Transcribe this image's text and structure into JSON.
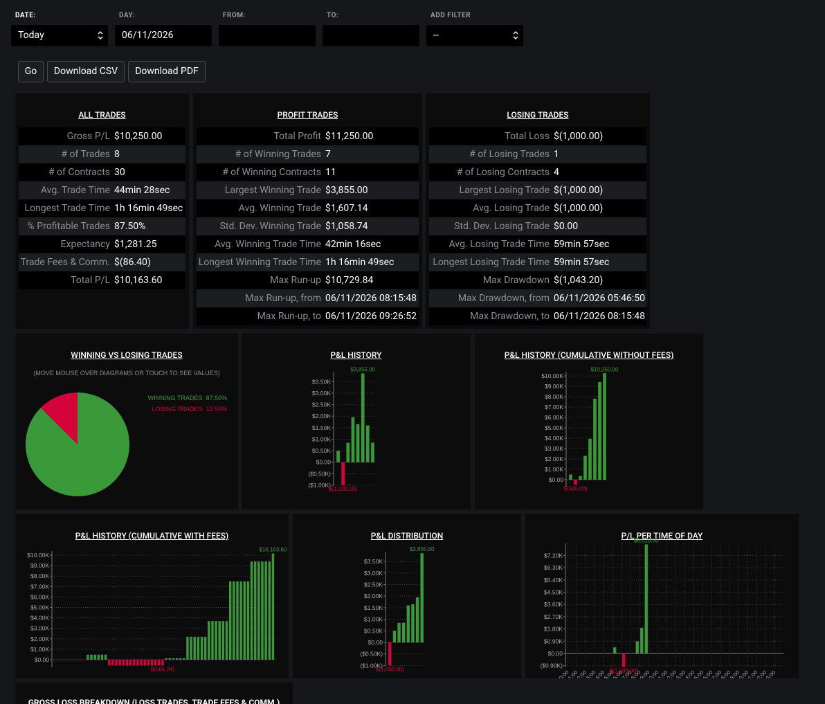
{
  "filters": [
    {
      "label": "DATE:",
      "value": "Today"
    },
    {
      "label": "DAY:",
      "value": "06/11/2026"
    },
    {
      "label": "FROM:"
    },
    {
      "label": "TO:"
    },
    {
      "label": "ADD FILTER",
      "value": "--"
    }
  ],
  "buttons": [
    "Go",
    "Download CSV",
    "Download PDF"
  ],
  "stats": [
    {
      "title": "ALL TRADES",
      "rows": [
        [
          "Gross P/L",
          "$10,250.00"
        ],
        [
          "# of Trades",
          "8"
        ],
        [
          "# of Contracts",
          "30"
        ],
        [
          "Avg. Trade Time",
          "44min 28sec"
        ],
        [
          "Longest Trade Time",
          "1h 16min 49sec"
        ],
        [
          "% Profitable Trades",
          "87.50%"
        ],
        [
          "Expectancy",
          "$1,281.25"
        ],
        [
          "Trade Fees & Comm.",
          "$(86.40)"
        ],
        [
          "Total P/L",
          "$10,163.60"
        ]
      ]
    },
    {
      "title": "PROFIT TRADES",
      "rows": [
        [
          "Total Profit",
          "$11,250.00"
        ],
        [
          "# of Winning Trades",
          "7"
        ],
        [
          "# of Winning Contracts",
          "11"
        ],
        [
          "Largest Winning Trade",
          "$3,855.00"
        ],
        [
          "Avg. Winning Trade",
          "$1,607.14"
        ],
        [
          "Std. Dev. Winning Trade",
          "$1,058.74"
        ],
        [
          "Avg. Winning Trade Time",
          "42min 16sec"
        ],
        [
          "Longest Winning Trade Time",
          "1h 16min 49sec"
        ],
        [
          "Max Run-up",
          "$10,729.84"
        ],
        [
          "Max Run-up, from",
          "06/11/2026 08:15:48"
        ],
        [
          "Max Run-up, to",
          "06/11/2026 09:26:52"
        ]
      ]
    },
    {
      "title": "LOSING TRADES",
      "rows": [
        [
          "Total Loss",
          "$(1,000.00)"
        ],
        [
          "# of Losing Trades",
          "1"
        ],
        [
          "# of Losing Contracts",
          "4"
        ],
        [
          "Largest Losing Trade",
          "$(1,000.00)"
        ],
        [
          "Avg. Losing Trade",
          "$(1,000.00)"
        ],
        [
          "Std. Dev. Losing Trade",
          "$0.00"
        ],
        [
          "Avg. Losing Trade Time",
          "59min 57sec"
        ],
        [
          "Longest Losing Trade Time",
          "59min 57sec"
        ],
        [
          "Max Drawdown",
          "$(1,043.20)"
        ],
        [
          "Max Drawdown, from",
          "06/11/2026 05:46:50"
        ],
        [
          "Max Drawdown, to",
          "06/11/2026 08:15:48"
        ]
      ]
    }
  ],
  "chart_data": [
    {
      "type": "pie",
      "title": "WINNING VS LOSING TRADES",
      "subtitle": "(MOVE MOUSE OVER DIAGRAMS OR TOUCH TO SEE VALUES)",
      "labels": [
        "WINNING TRADES: 87.50%",
        "LOSING TRADES: 12.50%"
      ],
      "values": [
        87.5,
        12.5
      ],
      "colors": [
        "#3a9a3a",
        "#d4043a"
      ]
    },
    {
      "type": "bar",
      "title": "P&L HISTORY",
      "values": [
        500,
        -1000,
        845,
        1950,
        1650,
        3855,
        1600,
        850
      ],
      "value_labels": [
        null,
        "$(1,000.00)",
        null,
        null,
        null,
        "$3,855.00",
        null,
        null
      ],
      "pos_color": "#3a9a3a",
      "neg_color": "#d4043a",
      "grid": true,
      "ylim": [
        -1000,
        3900
      ],
      "yticks": [
        {
          "value": -1000,
          "label": "($1.00K)"
        },
        {
          "value": -500,
          "label": "($0.50K)"
        },
        {
          "value": 0,
          "label": "$0.00"
        },
        {
          "value": 500,
          "label": "$0.50K"
        },
        {
          "value": 1000,
          "label": "$1.00K"
        },
        {
          "value": 1500,
          "label": "$1.50K"
        },
        {
          "value": 2000,
          "label": "$2.00K"
        },
        {
          "value": 2500,
          "label": "$2.50K"
        },
        {
          "value": 3000,
          "label": "$3.00K"
        },
        {
          "value": 3500,
          "label": "$3.50K"
        }
      ]
    },
    {
      "type": "bar",
      "title": "P&L HISTORY (CUMULATIVE WITHOUT FEES)",
      "values": [
        500,
        -500,
        345,
        2295,
        3945,
        7800,
        9400,
        10250
      ],
      "value_labels": [
        null,
        "$(500.00)",
        null,
        null,
        null,
        null,
        null,
        "$10,250.00"
      ],
      "pos_color": "#3a9a3a",
      "neg_color": "#d4043a",
      "grid": true,
      "ylim": [
        -700,
        10400
      ],
      "yticks": [
        {
          "value": 0,
          "label": "$0.00"
        },
        {
          "value": 1000,
          "label": "$1.00K"
        },
        {
          "value": 2000,
          "label": "$2.00K"
        },
        {
          "value": 3000,
          "label": "$3.00K"
        },
        {
          "value": 4000,
          "label": "$4.00K"
        },
        {
          "value": 5000,
          "label": "$5.00K"
        },
        {
          "value": 6000,
          "label": "$6.00K"
        },
        {
          "value": 7000,
          "label": "$7.00K"
        },
        {
          "value": 8000,
          "label": "$8.00K"
        },
        {
          "value": 9000,
          "label": "$9.00K"
        },
        {
          "value": 10000,
          "label": "$10.00K"
        }
      ]
    },
    {
      "type": "bar",
      "title": "P&L HISTORY (CUMULATIVE WITH FEES)",
      "values": [
        -15,
        -15,
        -15,
        -15,
        -15,
        -15,
        -15,
        -15,
        -15,
        488,
        488,
        488,
        488,
        488,
        488,
        -566.24,
        -566.24,
        -566.24,
        -566.24,
        -566.24,
        -566.24,
        -566.24,
        -566.24,
        -566.24,
        -566.24,
        -566.24,
        -566.24,
        -566.24,
        -566.24,
        -566.24,
        -566.24,
        140,
        140,
        140,
        140,
        140,
        140,
        2200,
        2200,
        2200,
        2200,
        2200,
        2200,
        3700,
        3700,
        3700,
        3700,
        3700,
        3700,
        7500,
        7500,
        7500,
        7500,
        7500,
        7500,
        9400,
        9400,
        9400,
        9400,
        9400,
        9400,
        10163.6
      ],
      "value_labels": [
        null,
        null,
        null,
        null,
        null,
        null,
        null,
        null,
        null,
        null,
        null,
        null,
        null,
        null,
        null,
        null,
        null,
        null,
        null,
        null,
        null,
        null,
        null,
        null,
        null,
        null,
        null,
        null,
        null,
        null,
        "$(566.24)",
        null,
        null,
        null,
        null,
        null,
        null,
        null,
        null,
        null,
        null,
        null,
        null,
        null,
        null,
        null,
        null,
        null,
        null,
        null,
        null,
        null,
        null,
        null,
        null,
        null,
        null,
        null,
        null,
        null,
        null,
        "$10,163.60"
      ],
      "pos_color": "#3a9a3a",
      "neg_color": "#d4043a",
      "grid": true,
      "ylim": [
        -700,
        10400
      ],
      "yticks": [
        {
          "value": 0,
          "label": "$0.00"
        },
        {
          "value": 1000,
          "label": "$1.00K"
        },
        {
          "value": 2000,
          "label": "$2.00K"
        },
        {
          "value": 3000,
          "label": "$3.00K"
        },
        {
          "value": 4000,
          "label": "$4.00K"
        },
        {
          "value": 5000,
          "label": "$5.00K"
        },
        {
          "value": 6000,
          "label": "$6.00K"
        },
        {
          "value": 7000,
          "label": "$7.00K"
        },
        {
          "value": 8000,
          "label": "$8.00K"
        },
        {
          "value": 9000,
          "label": "$9.00K"
        },
        {
          "value": 10000,
          "label": "$10.00K"
        }
      ]
    },
    {
      "type": "bar",
      "title": "P&L DISTRIBUTION",
      "values": [
        -1000,
        500,
        845,
        850,
        1600,
        1650,
        1950,
        3855
      ],
      "value_labels": [
        "$(1,000.00)",
        null,
        null,
        null,
        null,
        null,
        null,
        "$3,855.00"
      ],
      "pos_color": "#3a9a3a",
      "neg_color": "#d4043a",
      "grid": true,
      "ylim": [
        -1000,
        3900
      ],
      "yticks": [
        {
          "value": -1000,
          "label": "($1.00K)"
        },
        {
          "value": -500,
          "label": "($0.50K)"
        },
        {
          "value": 0,
          "label": "$0.00"
        },
        {
          "value": 500,
          "label": "$0.50K"
        },
        {
          "value": 1000,
          "label": "$1.00K"
        },
        {
          "value": 1500,
          "label": "$1.50K"
        },
        {
          "value": 2000,
          "label": "$2.00K"
        },
        {
          "value": 2500,
          "label": "$2.50K"
        },
        {
          "value": 3000,
          "label": "$3.00K"
        },
        {
          "value": 3500,
          "label": "$3.50K"
        }
      ]
    },
    {
      "type": "bar",
      "title": "P/L PER TIME OF DAY",
      "categories": [
        "0:00",
        null,
        "1:00",
        null,
        "2:00",
        null,
        "3:00",
        null,
        "4:00",
        null,
        "5:00",
        null,
        "6:00",
        null,
        "7:00",
        null,
        "8:00",
        null,
        "9:00",
        null,
        "10:00",
        null,
        "11:00",
        null,
        "12:00",
        null,
        "13:00",
        null,
        "14:00",
        null,
        "15:00",
        null,
        "16:00",
        null,
        "17:00",
        null,
        "18:00",
        null,
        "19:00",
        null,
        "20:00",
        null,
        "21:00",
        null,
        "22:00",
        null,
        "23:00",
        null
      ],
      "values": [
        0,
        0,
        0,
        0,
        0,
        0,
        0,
        0,
        0,
        0,
        450,
        0,
        -1000,
        0,
        0,
        900,
        1890,
        8010,
        0,
        0,
        0,
        0,
        0,
        0,
        0,
        0,
        0,
        0,
        0,
        0,
        0,
        0,
        0,
        0,
        0,
        0,
        0,
        0,
        0,
        0,
        0,
        0,
        0,
        0,
        0,
        0,
        0,
        0
      ],
      "value_labels": [
        null,
        null,
        null,
        null,
        null,
        null,
        null,
        null,
        null,
        null,
        null,
        null,
        "$(1,000.00)",
        null,
        null,
        null,
        null,
        "$8,010.00",
        null,
        null,
        null,
        null,
        null,
        null,
        null,
        null,
        null,
        null,
        null,
        null,
        null,
        null,
        null,
        null,
        null,
        null,
        null,
        null,
        null,
        null,
        null,
        null,
        null,
        null,
        null,
        null,
        null,
        null
      ],
      "pos_color": "#3a9a3a",
      "neg_color": "#d4043a",
      "grid": true,
      "ylim": [
        -1000,
        8100
      ],
      "yticks": [
        {
          "value": -900,
          "label": "($0.90K)"
        },
        {
          "value": 0,
          "label": "$0.00"
        },
        {
          "value": 900,
          "label": "$0.90K"
        },
        {
          "value": 1800,
          "label": "$1.80K"
        },
        {
          "value": 2700,
          "label": "$2.70K"
        },
        {
          "value": 3600,
          "label": "$3.60K"
        },
        {
          "value": 4500,
          "label": "$4.50K"
        },
        {
          "value": 5400,
          "label": "$5.40K"
        },
        {
          "value": 6300,
          "label": "$6.30K"
        },
        {
          "value": 7200,
          "label": "$7.20K"
        }
      ]
    }
  ],
  "footer_title": "GROSS LOSS BREAKDOWN (LOSS TRADES, TRADE FEES & COMM.)"
}
